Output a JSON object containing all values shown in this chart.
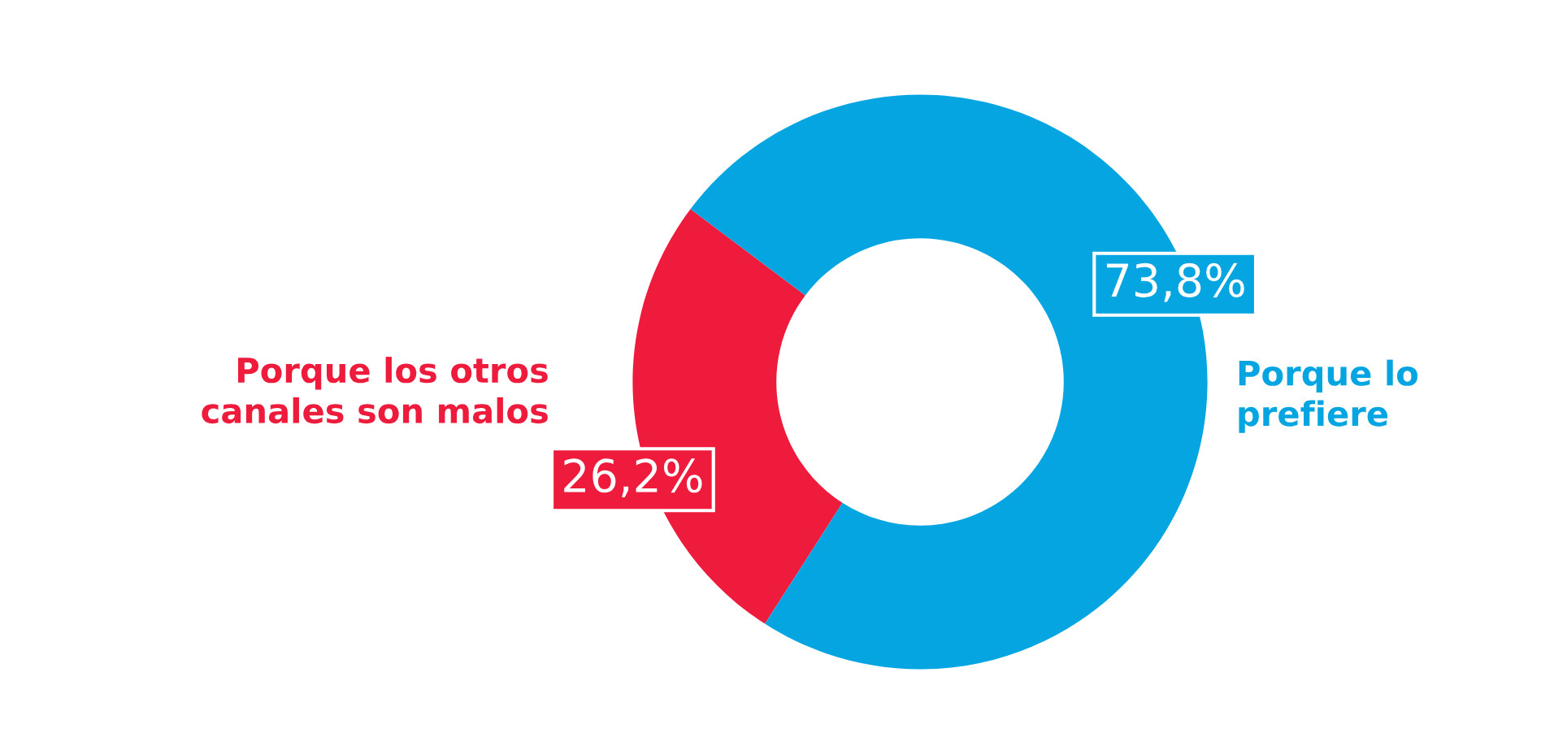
{
  "chart_data": {
    "type": "donut",
    "categories": [
      "Porque los otros\ncanales son malos",
      "Porque lo\nprefiere"
    ],
    "values": [
      26.2,
      73.8
    ],
    "value_labels": [
      "26,2%",
      "73,8%"
    ],
    "colors": [
      "#ee1b3c",
      "#05a5e1"
    ]
  }
}
